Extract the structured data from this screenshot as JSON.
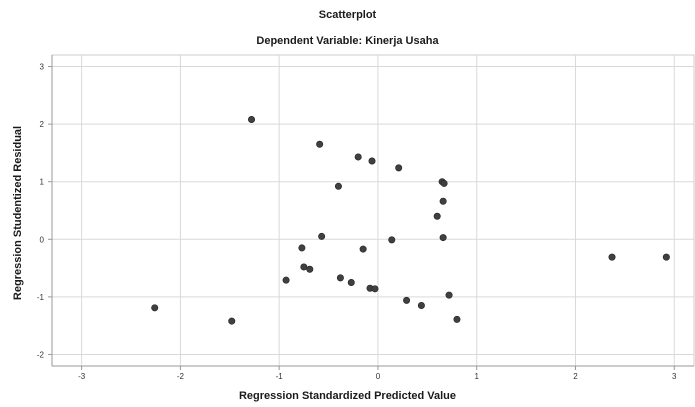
{
  "chart_data": {
    "type": "scatter",
    "title": "Scatterplot",
    "subtitle": "Dependent Variable: Kinerja Usaha",
    "xlabel": "Regression Standardized Predicted Value",
    "ylabel": "Regression Studentized Residual",
    "xlim": [
      -3.3,
      3.2
    ],
    "ylim": [
      -2.2,
      3.2
    ],
    "xticks": [
      -3,
      -2,
      -1,
      0,
      1,
      2,
      3
    ],
    "yticks": [
      -2,
      -1,
      0,
      1,
      2,
      3
    ],
    "grid": true,
    "point_color": "#404040",
    "grid_color": "#d9d9d9",
    "points": [
      {
        "x": -1.28,
        "y": 2.08
      },
      {
        "x": -0.59,
        "y": 1.65
      },
      {
        "x": -0.2,
        "y": 1.43
      },
      {
        "x": -0.06,
        "y": 1.36
      },
      {
        "x": 0.21,
        "y": 1.24
      },
      {
        "x": -0.4,
        "y": 0.92
      },
      {
        "x": 0.65,
        "y": 1.0
      },
      {
        "x": 0.67,
        "y": 0.97
      },
      {
        "x": 0.66,
        "y": 0.66
      },
      {
        "x": 0.6,
        "y": 0.4
      },
      {
        "x": -0.57,
        "y": 0.05
      },
      {
        "x": 0.66,
        "y": 0.03
      },
      {
        "x": 0.14,
        "y": -0.01
      },
      {
        "x": -0.77,
        "y": -0.15
      },
      {
        "x": -0.15,
        "y": -0.17
      },
      {
        "x": 2.37,
        "y": -0.31
      },
      {
        "x": 2.92,
        "y": -0.31
      },
      {
        "x": -0.75,
        "y": -0.48
      },
      {
        "x": -0.69,
        "y": -0.52
      },
      {
        "x": -0.93,
        "y": -0.71
      },
      {
        "x": -0.38,
        "y": -0.67
      },
      {
        "x": -0.27,
        "y": -0.75
      },
      {
        "x": -0.08,
        "y": -0.85
      },
      {
        "x": -0.03,
        "y": -0.86
      },
      {
        "x": 0.72,
        "y": -0.97
      },
      {
        "x": 0.29,
        "y": -1.06
      },
      {
        "x": 0.44,
        "y": -1.15
      },
      {
        "x": -2.26,
        "y": -1.19
      },
      {
        "x": -1.48,
        "y": -1.42
      },
      {
        "x": 0.8,
        "y": -1.39
      }
    ]
  }
}
